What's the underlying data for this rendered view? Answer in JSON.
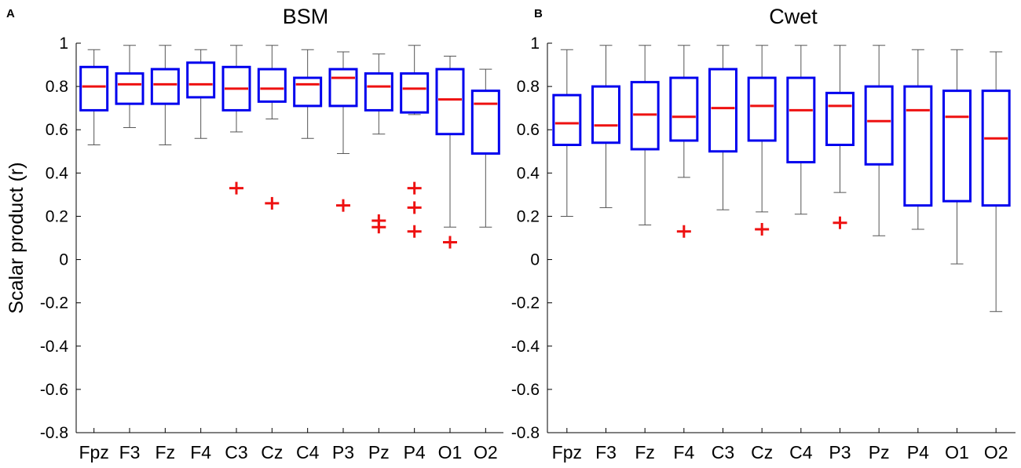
{
  "chart_data": [
    {
      "type": "boxplot",
      "panel_letter": "A",
      "title": "BSM",
      "ylabel": "Scalar product (r)",
      "xlabel": "",
      "ylim": [
        -0.8,
        1
      ],
      "yticks": [
        -0.8,
        -0.6,
        -0.4,
        -0.2,
        0,
        0.2,
        0.4,
        0.6,
        0.8,
        1
      ],
      "ytick_labels": [
        "-0.8",
        "-0.6",
        "-0.4",
        "-0.2",
        "0",
        "0.2",
        "0.4",
        "0.6",
        "0.8",
        "1"
      ],
      "categories": [
        "Fpz",
        "F3",
        "Fz",
        "F4",
        "C3",
        "Cz",
        "C4",
        "P3",
        "Pz",
        "P4",
        "O1",
        "O2"
      ],
      "boxes": [
        {
          "wlo": 0.53,
          "q1": 0.69,
          "med": 0.8,
          "q3": 0.89,
          "whi": 0.97,
          "outliers": []
        },
        {
          "wlo": 0.61,
          "q1": 0.72,
          "med": 0.81,
          "q3": 0.86,
          "whi": 0.99,
          "outliers": []
        },
        {
          "wlo": 0.53,
          "q1": 0.72,
          "med": 0.81,
          "q3": 0.88,
          "whi": 0.99,
          "outliers": []
        },
        {
          "wlo": 0.56,
          "q1": 0.75,
          "med": 0.81,
          "q3": 0.91,
          "whi": 0.97,
          "outliers": []
        },
        {
          "wlo": 0.59,
          "q1": 0.69,
          "med": 0.79,
          "q3": 0.89,
          "whi": 0.99,
          "outliers": [
            0.33
          ]
        },
        {
          "wlo": 0.65,
          "q1": 0.73,
          "med": 0.79,
          "q3": 0.88,
          "whi": 0.99,
          "outliers": [
            0.26
          ]
        },
        {
          "wlo": 0.56,
          "q1": 0.71,
          "med": 0.81,
          "q3": 0.84,
          "whi": 0.97,
          "outliers": []
        },
        {
          "wlo": 0.49,
          "q1": 0.71,
          "med": 0.84,
          "q3": 0.88,
          "whi": 0.96,
          "outliers": [
            0.25
          ]
        },
        {
          "wlo": 0.58,
          "q1": 0.69,
          "med": 0.8,
          "q3": 0.86,
          "whi": 0.95,
          "outliers": [
            0.18,
            0.15
          ]
        },
        {
          "wlo": 0.67,
          "q1": 0.68,
          "med": 0.79,
          "q3": 0.86,
          "whi": 0.99,
          "outliers": [
            0.33,
            0.24,
            0.13
          ]
        },
        {
          "wlo": 0.15,
          "q1": 0.58,
          "med": 0.74,
          "q3": 0.88,
          "whi": 0.94,
          "outliers": [
            0.08
          ]
        },
        {
          "wlo": 0.15,
          "q1": 0.49,
          "med": 0.72,
          "q3": 0.78,
          "whi": 0.88,
          "outliers": []
        }
      ]
    },
    {
      "type": "boxplot",
      "panel_letter": "B",
      "title": "Cwet",
      "ylabel": "",
      "xlabel": "",
      "ylim": [
        -0.8,
        1
      ],
      "yticks": [
        -0.8,
        -0.6,
        -0.4,
        -0.2,
        0,
        0.2,
        0.4,
        0.6,
        0.8,
        1
      ],
      "ytick_labels": [
        "-0.8",
        "-0.6",
        "-0.4",
        "-0.2",
        "0",
        "0.2",
        "0.4",
        "0.6",
        "0.8",
        "1"
      ],
      "categories": [
        "Fpz",
        "F3",
        "Fz",
        "F4",
        "C3",
        "Cz",
        "C4",
        "P3",
        "Pz",
        "P4",
        "O1",
        "O2"
      ],
      "boxes": [
        {
          "wlo": 0.2,
          "q1": 0.53,
          "med": 0.63,
          "q3": 0.76,
          "whi": 0.97,
          "outliers": []
        },
        {
          "wlo": 0.24,
          "q1": 0.54,
          "med": 0.62,
          "q3": 0.8,
          "whi": 0.99,
          "outliers": []
        },
        {
          "wlo": 0.16,
          "q1": 0.51,
          "med": 0.67,
          "q3": 0.82,
          "whi": 0.99,
          "outliers": []
        },
        {
          "wlo": 0.38,
          "q1": 0.55,
          "med": 0.66,
          "q3": 0.84,
          "whi": 0.99,
          "outliers": [
            0.13
          ]
        },
        {
          "wlo": 0.23,
          "q1": 0.5,
          "med": 0.7,
          "q3": 0.88,
          "whi": 0.99,
          "outliers": []
        },
        {
          "wlo": 0.22,
          "q1": 0.55,
          "med": 0.71,
          "q3": 0.84,
          "whi": 0.99,
          "outliers": [
            0.14
          ]
        },
        {
          "wlo": 0.21,
          "q1": 0.45,
          "med": 0.69,
          "q3": 0.84,
          "whi": 0.99,
          "outliers": []
        },
        {
          "wlo": 0.31,
          "q1": 0.53,
          "med": 0.71,
          "q3": 0.77,
          "whi": 0.99,
          "outliers": [
            0.17
          ]
        },
        {
          "wlo": 0.11,
          "q1": 0.44,
          "med": 0.64,
          "q3": 0.8,
          "whi": 0.99,
          "outliers": []
        },
        {
          "wlo": 0.14,
          "q1": 0.25,
          "med": 0.69,
          "q3": 0.8,
          "whi": 0.97,
          "outliers": []
        },
        {
          "wlo": -0.02,
          "q1": 0.27,
          "med": 0.66,
          "q3": 0.78,
          "whi": 0.97,
          "outliers": []
        },
        {
          "wlo": -0.24,
          "q1": 0.25,
          "med": 0.56,
          "q3": 0.78,
          "whi": 0.96,
          "outliers": []
        }
      ]
    }
  ],
  "colors": {
    "box": "#0000ee",
    "median": "#ee1111",
    "outlier": "#ee1111",
    "whisker": "#555555",
    "axis": "#000000"
  }
}
